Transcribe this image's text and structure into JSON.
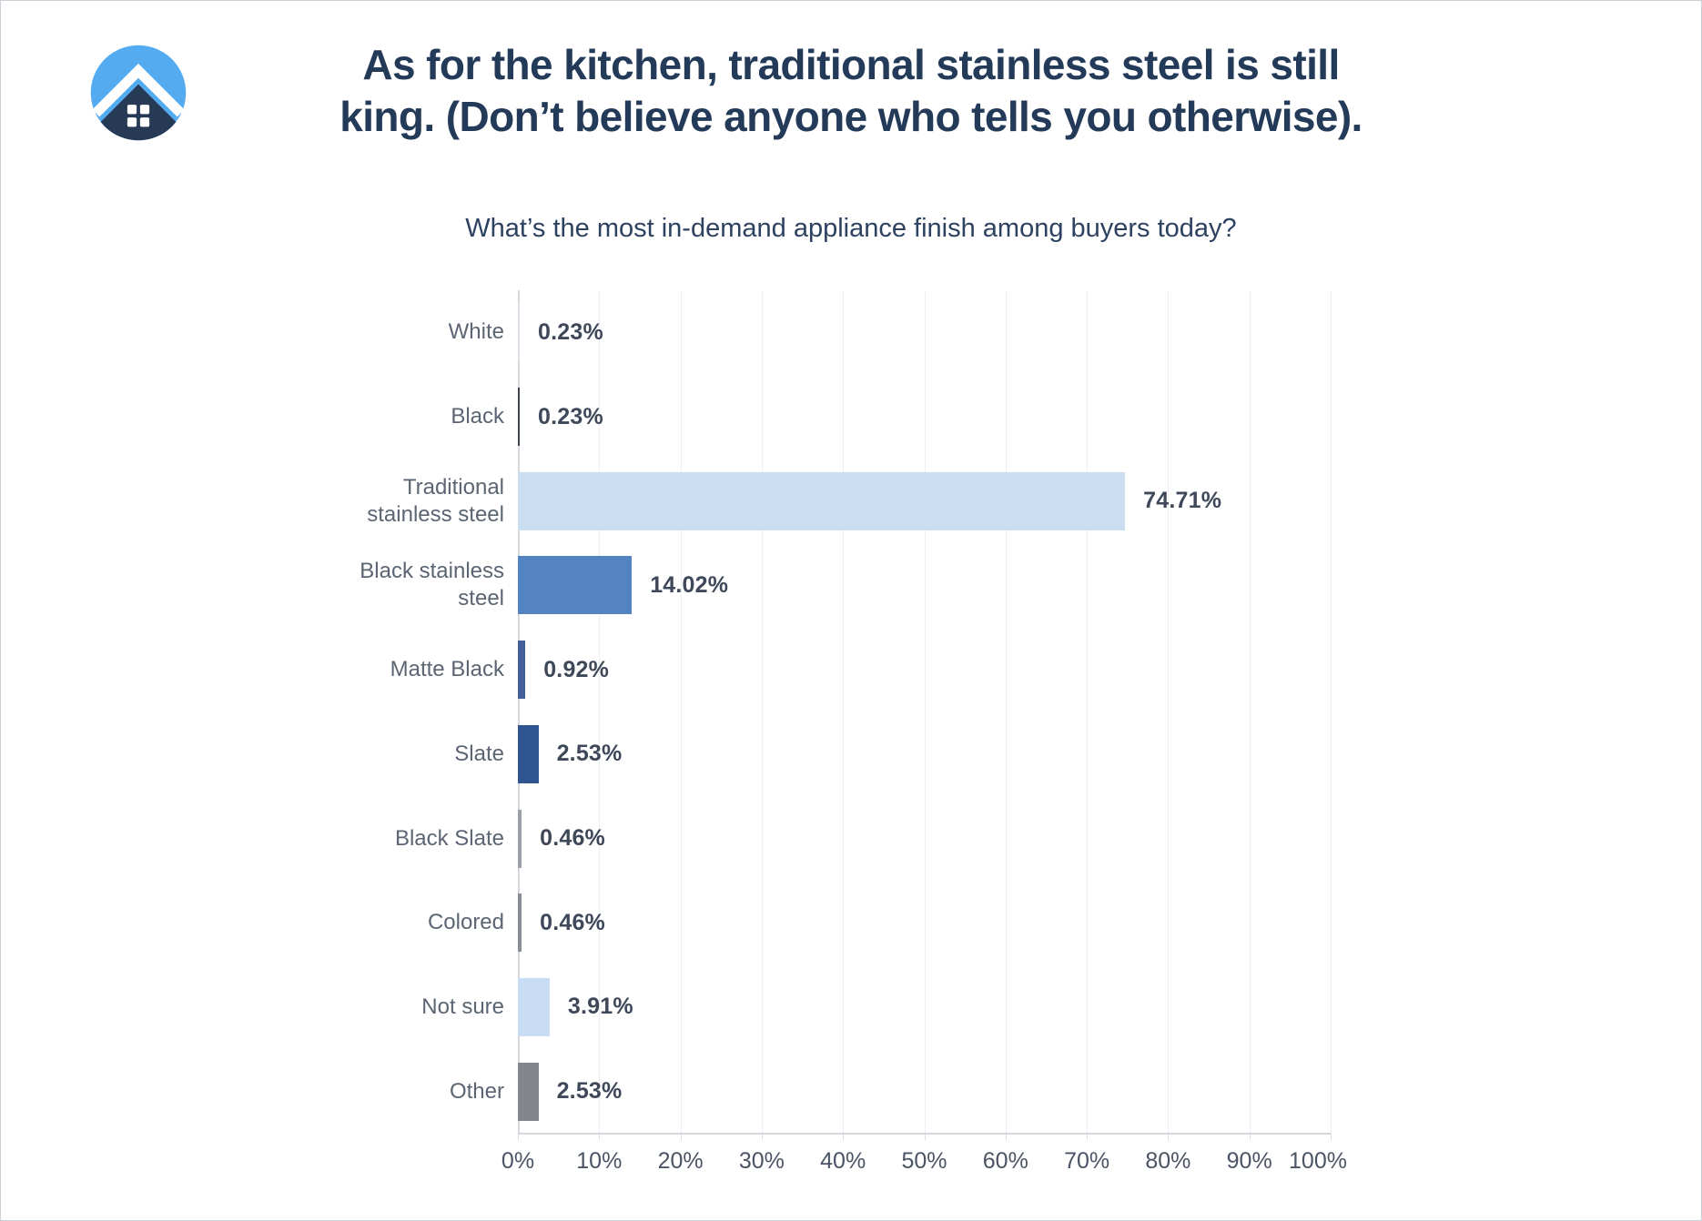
{
  "header": {
    "title_lines": [
      "As for the kitchen, traditional stainless steel is still",
      "king. (Don’t believe anyone who tells you otherwise)."
    ],
    "subtitle": "What’s the most in-demand appliance finish among buyers today?"
  },
  "chart_data": {
    "type": "bar",
    "orientation": "horizontal",
    "title": "What’s the most in-demand appliance finish among buyers today?",
    "categories": [
      "White",
      "Black",
      "Traditional stainless steel",
      "Black stainless steel",
      "Matte Black",
      "Slate",
      "Black Slate",
      "Colored",
      "Not sure",
      "Other"
    ],
    "values": [
      0.23,
      0.23,
      74.71,
      14.02,
      0.92,
      2.53,
      0.46,
      0.46,
      3.91,
      2.53
    ],
    "value_labels": [
      "0.23%",
      "0.23%",
      "74.71%",
      "14.02%",
      "0.92%",
      "2.53%",
      "0.46%",
      "0.46%",
      "3.91%",
      "2.53%"
    ],
    "bar_colors": [
      "#dbe0e6",
      "#3f454e",
      "#cbddf1",
      "#5383c3",
      "#42619a",
      "#2e5590",
      "#9aa1a9",
      "#878d95",
      "#c8ddf4",
      "#83868c"
    ],
    "xlim": [
      0,
      100
    ],
    "x_ticks": [
      "0%",
      "10%",
      "20%",
      "30%",
      "40%",
      "50%",
      "60%",
      "70%",
      "80%",
      "90%",
      "100%"
    ],
    "grid": "vertical-only",
    "legend": "none"
  },
  "colors": {
    "title_text": "#243a59",
    "subtitle_text": "#2d4160",
    "category_label": "#5b6573",
    "value_label": "#3e4859",
    "tick_label": "#4a5464",
    "axis_line": "#d5d9de",
    "gridline": "#eceef1",
    "logo_sky": "#55abf0",
    "logo_house": "#263a55"
  }
}
